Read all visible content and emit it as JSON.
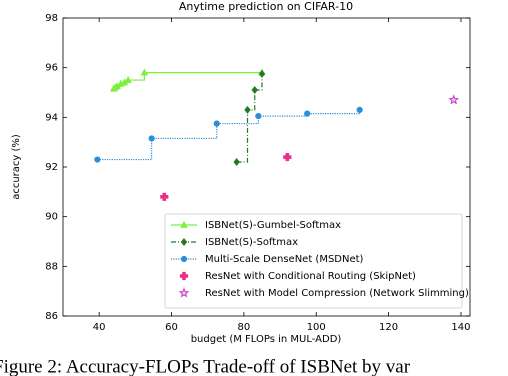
{
  "chart_data": {
    "type": "line",
    "title": "Anytime prediction on CIFAR-10",
    "x_label": "budget (M FLOPs in MUL-ADD)",
    "y_label": "accuracy (%)",
    "xlim": [
      30,
      142.5
    ],
    "ylim": [
      86,
      98
    ],
    "xticks": [
      40,
      60,
      80,
      100,
      120,
      140
    ],
    "yticks": [
      86,
      88,
      90,
      92,
      94,
      96,
      98
    ],
    "legend": "lower right",
    "drawstyle": "steps-post",
    "series": [
      {
        "name": "ISBNet(S)-Gumbel-Softmax",
        "color": "#7cf03c",
        "marker": "triangle",
        "linestyle": "solid",
        "x": [
          44,
          44.5,
          45,
          46,
          47,
          48,
          52.5,
          85
        ],
        "values": [
          95.15,
          95.2,
          95.25,
          95.35,
          95.4,
          95.5,
          95.8,
          95.8
        ]
      },
      {
        "name": "ISBNet(S)-Softmax",
        "color": "#237a23",
        "marker": "diamond",
        "linestyle": "dashdot",
        "x": [
          78,
          81,
          83,
          85
        ],
        "values": [
          92.2,
          94.3,
          95.1,
          95.75
        ]
      },
      {
        "name": "Multi-Scale DenseNet (MSDNet)",
        "color": "#2a8fd8",
        "marker": "circle",
        "linestyle": "dotted",
        "x": [
          39.5,
          54.5,
          72.5,
          84,
          97.5,
          112
        ],
        "values": [
          92.3,
          93.15,
          93.75,
          94.05,
          94.15,
          94.3
        ]
      },
      {
        "name": "ResNet with Conditional Routing (SkipNet)",
        "color": "#e8308a",
        "marker": "plus",
        "linestyle": "none",
        "x": [
          58,
          92
        ],
        "values": [
          90.8,
          92.4
        ]
      },
      {
        "name": "ResNet with Model Compression (Network Slimming)",
        "color": "#c23fc2",
        "marker": "star",
        "linestyle": "none",
        "x": [
          138
        ],
        "values": [
          94.7
        ]
      }
    ]
  },
  "caption": "Figure 2: Accuracy-FLOPs Trade-off of ISBNet by var"
}
